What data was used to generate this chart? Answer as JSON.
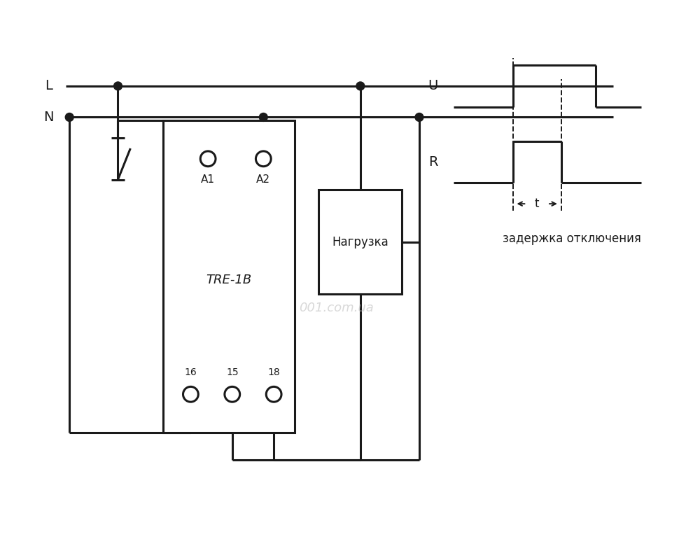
{
  "bg_color": "#ffffff",
  "line_color": "#1a1a1a",
  "text_color": "#1a1a1a",
  "watermark_color": "#c0c0c0",
  "lw": 2.2,
  "lw_thin": 1.4,
  "fig_w": 10.0,
  "fig_h": 8.0,
  "label_L": "L",
  "label_N": "N",
  "label_A1": "A1",
  "label_A2": "A2",
  "label_TRE": "TRE-1B",
  "label_16": "16",
  "label_15": "15",
  "label_18": "18",
  "label_load": "Нагрузка",
  "label_U": "U",
  "label_R": "R",
  "label_t": "t",
  "label_zadержka": "задержка отключения",
  "watermark": "001.com.ua"
}
